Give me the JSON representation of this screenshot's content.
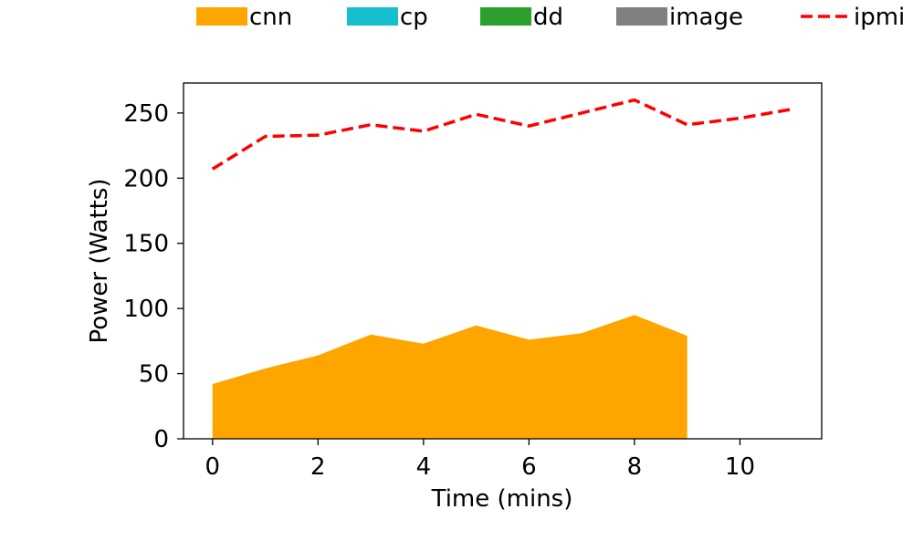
{
  "chart_data": {
    "type": "area",
    "xlabel": "Time (mins)",
    "ylabel": "Power (Watts)",
    "xlim": [
      -0.55,
      11.55
    ],
    "ylim": [
      0,
      273
    ],
    "x_ticks": [
      0,
      2,
      4,
      6,
      8,
      10
    ],
    "y_ticks": [
      0,
      50,
      100,
      150,
      200,
      250
    ],
    "grid": false,
    "legend_position": "top",
    "legend": [
      {
        "label": "cnn",
        "color": "#ffa500",
        "kind": "patch"
      },
      {
        "label": "cp",
        "color": "#17becf",
        "kind": "patch"
      },
      {
        "label": "dd",
        "color": "#2ca02c",
        "kind": "patch"
      },
      {
        "label": "image",
        "color": "#808080",
        "kind": "patch"
      },
      {
        "label": "ipmi",
        "color": "#ff0000",
        "kind": "dashed-line"
      }
    ],
    "series": [
      {
        "name": "cnn",
        "kind": "stacked-area",
        "color": "#ffa500",
        "x": [
          0,
          1,
          2,
          3,
          4,
          5,
          6,
          7,
          8,
          9
        ],
        "values": [
          42,
          54,
          64,
          80,
          73,
          87,
          76,
          81,
          95,
          79
        ]
      },
      {
        "name": "ipmi",
        "kind": "dashed-line",
        "color": "#ff0000",
        "x": [
          0,
          1,
          2,
          3,
          4,
          5,
          6,
          7,
          8,
          9,
          10,
          11
        ],
        "values": [
          207,
          232,
          233,
          241,
          236,
          249,
          240,
          250,
          260,
          241,
          246,
          253
        ]
      }
    ]
  }
}
